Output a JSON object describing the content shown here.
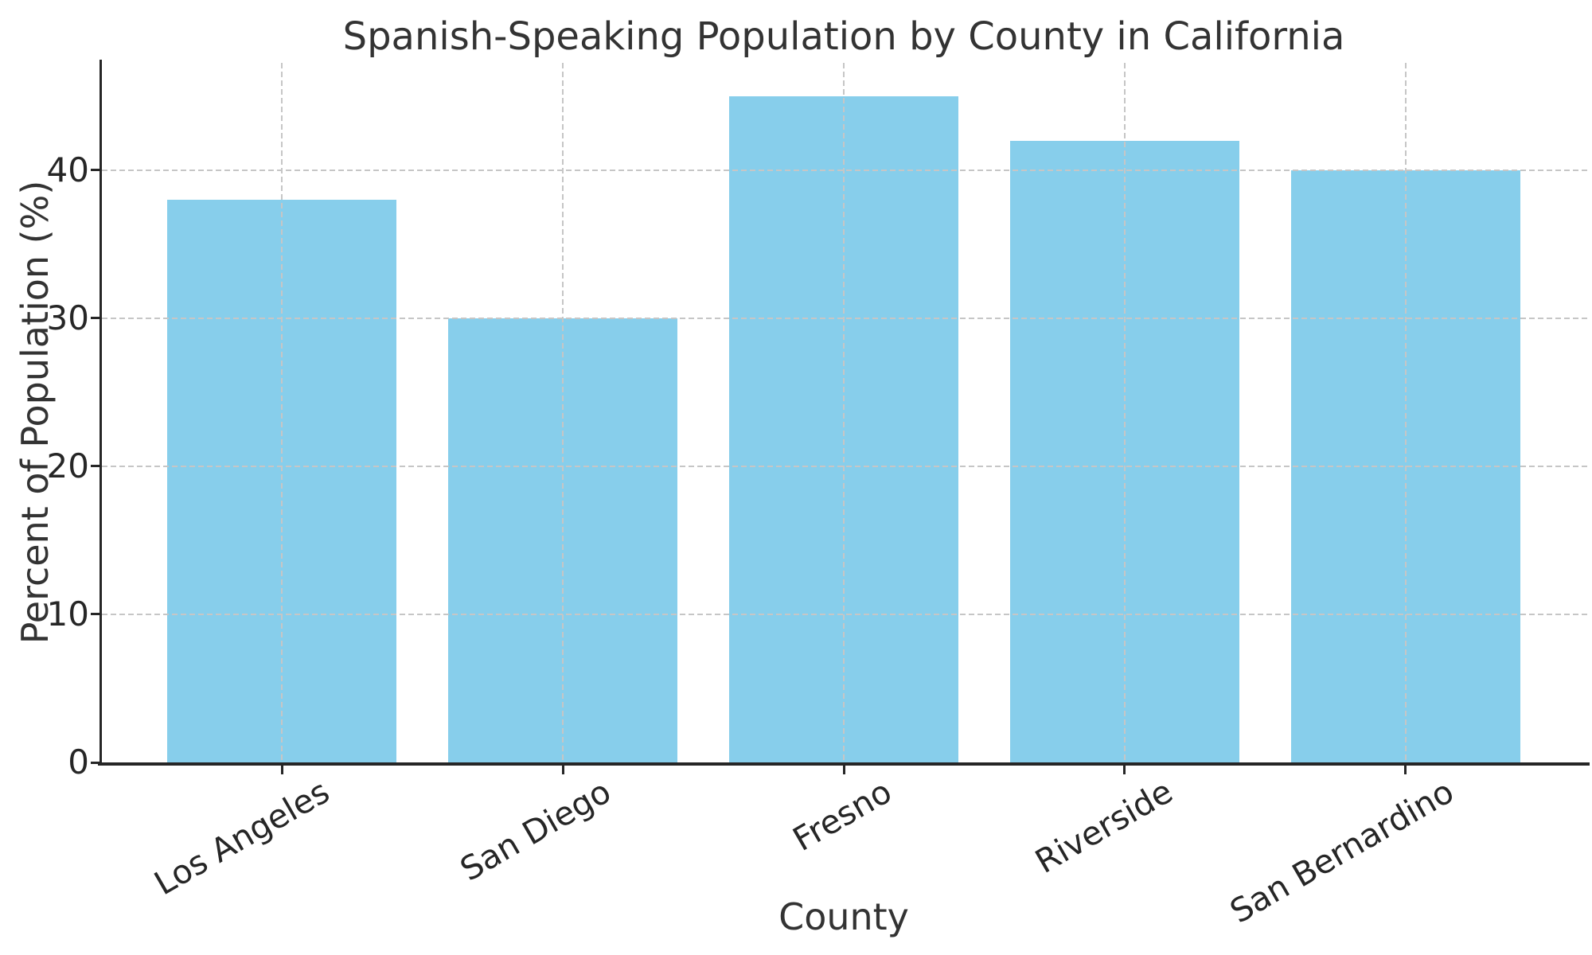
{
  "figure": {
    "background_color": "#ffffff"
  },
  "chart_data": {
    "type": "bar",
    "title": "Spanish-Speaking Population by County in California",
    "xlabel": "County",
    "ylabel": "Percent of Population (%)",
    "categories": [
      "Los Angeles",
      "San Diego",
      "Fresno",
      "Riverside",
      "San Bernardino"
    ],
    "values": [
      38,
      30,
      45,
      42,
      40
    ],
    "yticks": [
      0,
      10,
      20,
      30,
      40
    ],
    "ylim": [
      0,
      47.25
    ],
    "bar_color": "#87CEEB",
    "grid": {
      "visible": true,
      "style": "dashed",
      "color": "#c6c6c6",
      "drawn_over_bars": true,
      "horizontal_at": [
        10,
        20,
        30,
        40
      ],
      "vertical_at_each_bar": true
    },
    "spine_color": "#262626",
    "text_color": "#333333",
    "x_tick_rotation_deg": 30,
    "legend": null
  }
}
